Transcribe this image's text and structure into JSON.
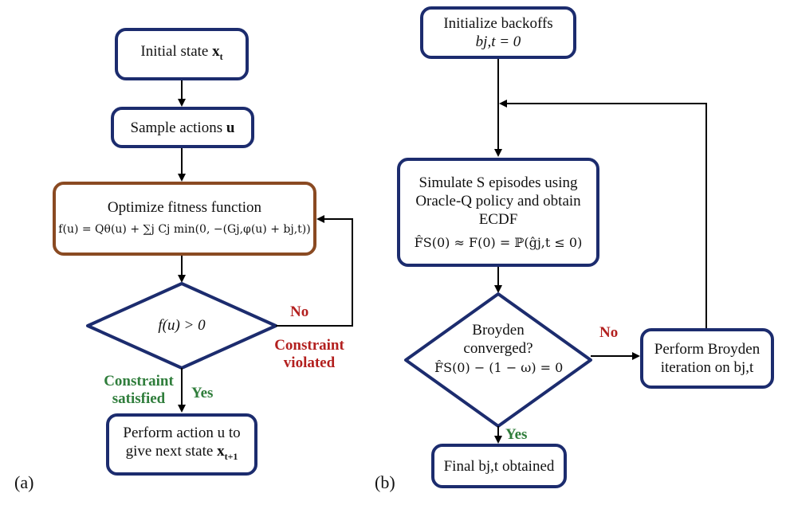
{
  "panel_a": {
    "label": "(a)",
    "initial": {
      "text": "Initial state",
      "var": "x",
      "sub": "t"
    },
    "sample": {
      "text": "Sample actions",
      "var": "u"
    },
    "optimize": {
      "title": "Optimize fitness function",
      "formula": "f(u) = Qθ(u) + ∑j Cj min(0, −(Gj,φ(u) + bj,t))"
    },
    "decision": {
      "text": "f(u) > 0"
    },
    "no_label": "No",
    "violated_label": "Constraint\nviolated",
    "satisfied_label": "Constraint\nsatisfied",
    "yes_label": "Yes",
    "perform": {
      "line1": "Perform action u to",
      "line2": "give next state",
      "var": "x",
      "sub": "t+1"
    }
  },
  "panel_b": {
    "label": "(b)",
    "init": {
      "line1": "Initialize backoffs",
      "line2": "bj,t = 0"
    },
    "simulate": {
      "line1": "Simulate S episodes using",
      "line2": "Oracle-Q policy and obtain",
      "line3": "ECDF",
      "formula": "F̂S(0) ≈ F(0) = ℙ(ĝj,t ≤ 0)"
    },
    "decision": {
      "line1": "Broyden",
      "line2": "converged?",
      "formula": "F̂S(0) − (1 − ω) = 0"
    },
    "no_label": "No",
    "yes_label": "Yes",
    "broyden": {
      "line1": "Perform Broyden",
      "line2": "iteration on bj,t"
    },
    "final": {
      "text": "Final bj,t obtained"
    }
  },
  "colors": {
    "box_border": "#1c2c6e",
    "optimize_border": "#8a4a22",
    "no": "#b3201f",
    "yes": "#2f7d3b"
  }
}
